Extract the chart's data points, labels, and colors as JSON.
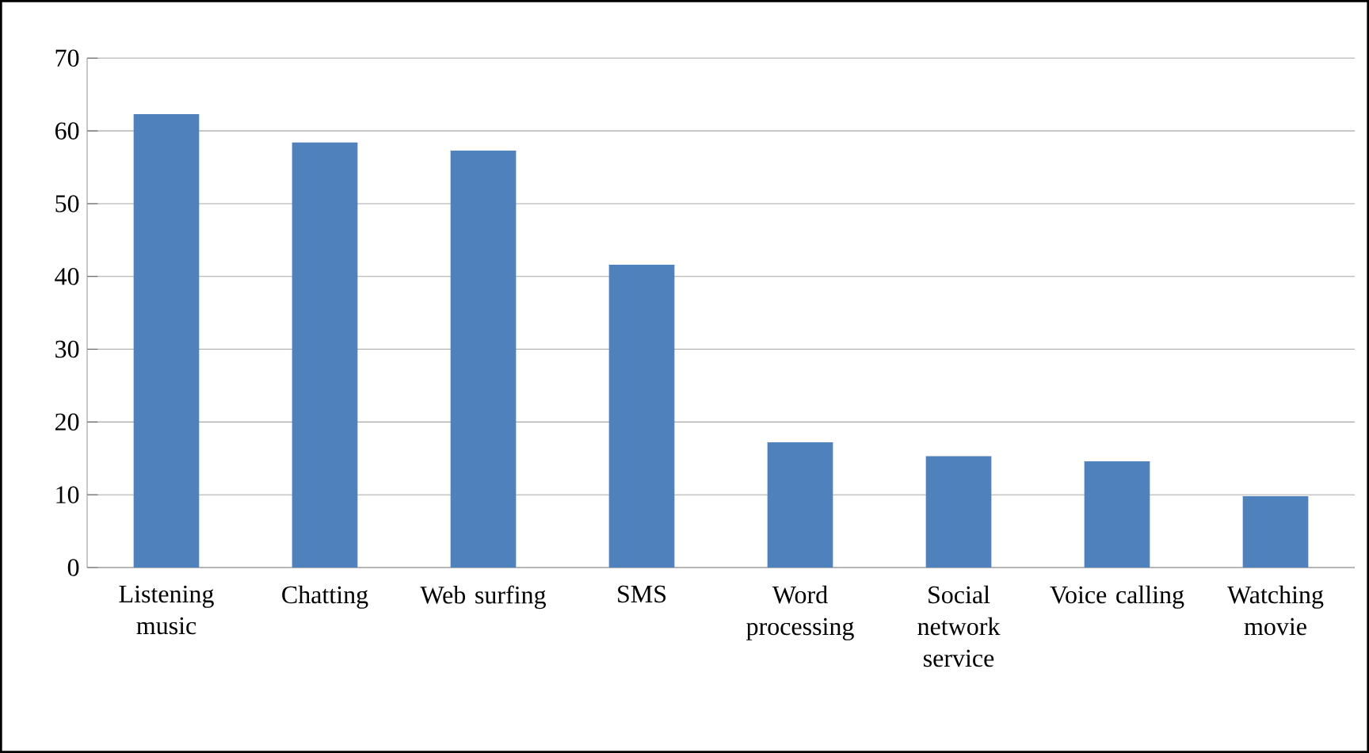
{
  "chart_data": {
    "type": "bar",
    "categories": [
      "Listening music",
      "Chatting",
      "Web surfing",
      "SMS",
      "Word processing",
      "Social network service",
      "Voice calling",
      "Watching movie"
    ],
    "values": [
      62.3,
      58.4,
      57.3,
      41.6,
      17.2,
      15.3,
      14.6,
      9.8
    ],
    "color": "#4f81bd",
    "ylim": [
      0,
      70
    ],
    "yticks": [
      0,
      10,
      20,
      30,
      40,
      50,
      60,
      70
    ],
    "grid": "y"
  }
}
